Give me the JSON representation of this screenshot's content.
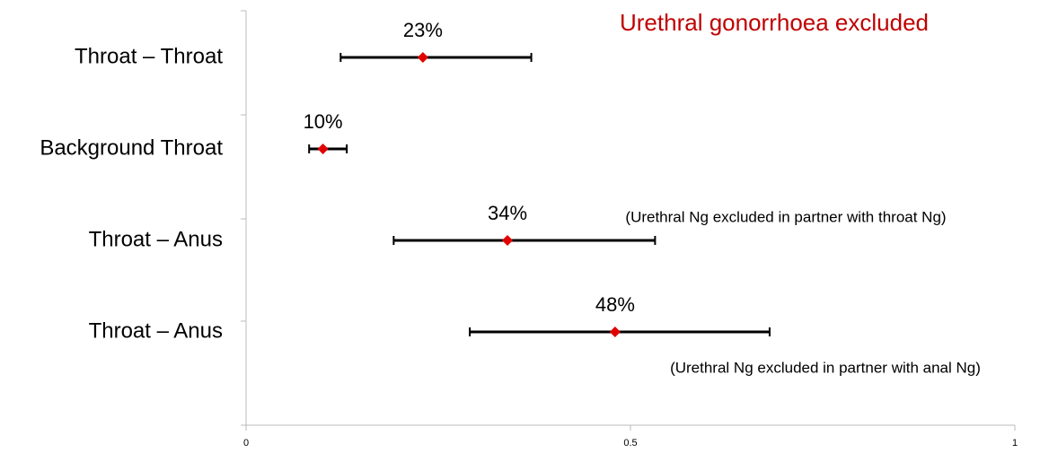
{
  "chart_data": {
    "type": "forest",
    "title": "Urethral gonorrhoea excluded",
    "title_color": "#c00000",
    "categories": [
      "Throat – Throat",
      "Background Throat",
      "Throat – Anus",
      "Throat – Anus"
    ],
    "values": [
      0.23,
      0.1,
      0.34,
      0.48
    ],
    "value_labels": [
      "23%",
      "10%",
      "34%",
      "48%"
    ],
    "lower": [
      0.123,
      0.082,
      0.192,
      0.291
    ],
    "upper": [
      0.371,
      0.131,
      0.532,
      0.681
    ],
    "marker_color": "#e00000",
    "bar_color": "#000000",
    "xlim": [
      0,
      1
    ],
    "xticks": [
      0,
      0.5,
      1
    ],
    "annotations": [
      "(Urethral Ng excluded in partner with throat Ng)",
      "(Urethral Ng excluded in partner with anal Ng)"
    ]
  }
}
